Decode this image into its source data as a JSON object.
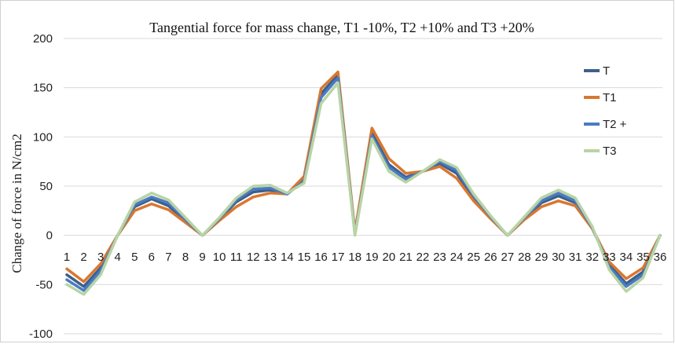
{
  "chart_data": {
    "type": "line",
    "title": "Tangential force for mass change, T1 -10%, T2 +10% and T3 +20%",
    "ylabel": "Change of force  in  N/cm2",
    "xlabel": "",
    "ylim": [
      -100,
      200
    ],
    "yticks": [
      -100,
      -50,
      0,
      50,
      100,
      150,
      200
    ],
    "grid": "horizontal",
    "legend_position": "right",
    "x": [
      "1",
      "2",
      "3",
      "4",
      "5",
      "6",
      "7",
      "8",
      "9",
      "10",
      "11",
      "12",
      "13",
      "14",
      "15",
      "16",
      "17",
      "18",
      "19",
      "20",
      "21",
      "22",
      "23",
      "24",
      "25",
      "26",
      "27",
      "28",
      "29",
      "30",
      "31",
      "32",
      "33",
      "34",
      "35",
      "36"
    ],
    "series": [
      {
        "name": "T",
        "color": "#3e5f8a",
        "values": [
          -40,
          -52,
          -33,
          0,
          29,
          37,
          30,
          15,
          0,
          16,
          34,
          44,
          46,
          42,
          57,
          144,
          163,
          2,
          104,
          72,
          59,
          65,
          73,
          63,
          38,
          18,
          0,
          17,
          33,
          40,
          33,
          7,
          -30,
          -49,
          -37,
          0
        ]
      },
      {
        "name": "T1",
        "color": "#d9772f",
        "values": [
          -34,
          -47,
          -29,
          0,
          25,
          32,
          26,
          13,
          0,
          15,
          29,
          39,
          43,
          42,
          60,
          149,
          166,
          4,
          109,
          78,
          63,
          65,
          70,
          58,
          35,
          17,
          0,
          16,
          29,
          35,
          30,
          7,
          -27,
          -44,
          -33,
          0
        ]
      },
      {
        "name": "T2 +",
        "color": "#4a7cc2",
        "values": [
          -45,
          -56,
          -36,
          0,
          31,
          39,
          33,
          16,
          0,
          17,
          36,
          47,
          48,
          42,
          55,
          140,
          160,
          1,
          101,
          69,
          57,
          65,
          75,
          66,
          40,
          19,
          0,
          18,
          35,
          43,
          35,
          8,
          -32,
          -52,
          -40,
          0
        ]
      },
      {
        "name": "T3",
        "color": "#b8d4a5",
        "values": [
          -50,
          -60,
          -40,
          0,
          34,
          43,
          36,
          18,
          0,
          18,
          38,
          50,
          51,
          43,
          53,
          134,
          155,
          0,
          98,
          65,
          54,
          65,
          77,
          69,
          42,
          20,
          0,
          19,
          38,
          46,
          38,
          9,
          -35,
          -57,
          -43,
          0
        ]
      }
    ]
  }
}
